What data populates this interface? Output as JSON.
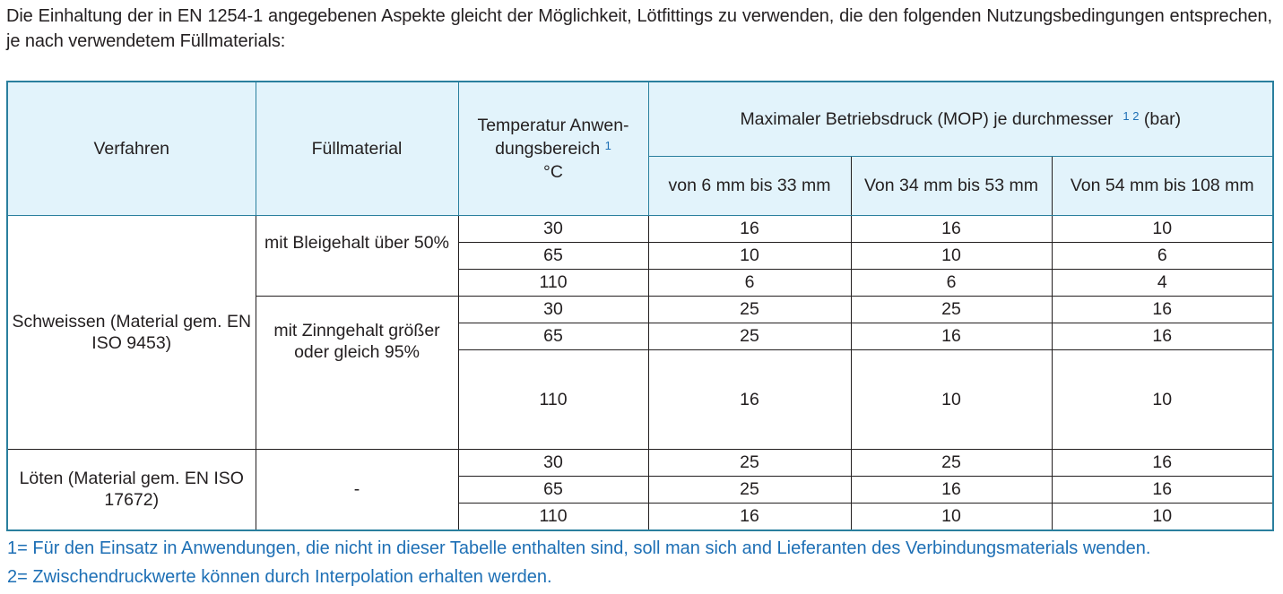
{
  "intro": "Die Einhaltung der in EN 1254-1 angegebenen Aspekte gleicht der Möglichkeit, Lötfittings zu verwenden, die den folgenden Nutzungsbedingungen entsprechen, je nach verwendetem Füllmaterials:",
  "colors": {
    "header_bg": "#e2f3fb",
    "border_accent": "#2a7f9e",
    "footnote": "#1d6fb5"
  },
  "header": {
    "verfahren": "Verfahren",
    "fuellmaterial": "Füllmaterial",
    "temperatur_line1": "Temperatur Anwen-",
    "temperatur_line2": "dungsbereich",
    "temperatur_sup": "1",
    "temperatur_unit": "°C",
    "mop": "Maximaler Betriebsdruck (MOP) je durchmesser",
    "mop_sup": "1 2",
    "mop_unit": "(bar)",
    "ranges": [
      "von 6 mm bis 33 mm",
      "Von 34 mm bis 53 mm",
      "Von 54 mm bis 108 mm"
    ]
  },
  "groups": [
    {
      "verfahren": "Schweissen (Material gem. EN ISO 9453)",
      "materials": [
        {
          "name": "mit Bleigehalt über 50%",
          "rows": [
            [
              "30",
              "16",
              "16",
              "10"
            ],
            [
              "65",
              "10",
              "10",
              "6"
            ],
            [
              "110",
              "6",
              "6",
              "4"
            ]
          ]
        },
        {
          "name": "mit Zinngehalt größer oder gleich 95%",
          "rows": [
            [
              "30",
              "25",
              "25",
              "16"
            ],
            [
              "65",
              "25",
              "16",
              "16"
            ],
            [
              "110",
              "16",
              "10",
              "10"
            ]
          ]
        }
      ]
    },
    {
      "verfahren": "Löten (Material gem. EN ISO 17672)",
      "materials": [
        {
          "name": "-",
          "rows": [
            [
              "30",
              "25",
              "25",
              "16"
            ],
            [
              "65",
              "25",
              "16",
              "16"
            ],
            [
              "110",
              "16",
              "10",
              "10"
            ]
          ]
        }
      ]
    }
  ],
  "footnotes": [
    "1= Für den Einsatz in Anwendungen, die nicht in dieser Tabelle enthalten sind, soll man sich and Lieferanten des Verbindungsmaterials wenden.",
    "2= Zwischendruckwerte können durch Interpolation erhalten werden."
  ]
}
